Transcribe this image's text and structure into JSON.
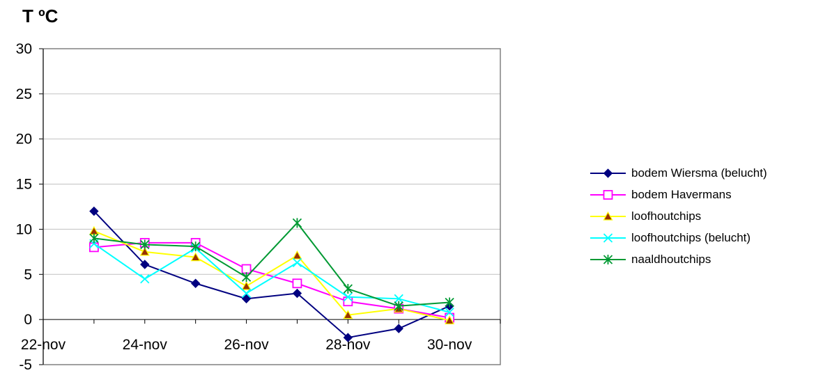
{
  "chart_data": {
    "type": "line",
    "ylabel": "T ºC",
    "xlabel": "",
    "x_ticks": [
      "22-nov",
      "24-nov",
      "26-nov",
      "28-nov",
      "30-nov"
    ],
    "ylim": [
      -5,
      30
    ],
    "xlim": [
      "22-nov",
      "01-dec"
    ],
    "y_ticks": [
      -5,
      0,
      5,
      10,
      15,
      20,
      25,
      30
    ],
    "grid": "horizontal",
    "legend_position": "right",
    "x": [
      "23-nov",
      "24-nov",
      "25-nov",
      "26-nov",
      "27-nov",
      "28-nov",
      "29-nov",
      "30-nov"
    ],
    "series": [
      {
        "name": "bodem Wiersma (belucht)",
        "color": "#000080",
        "marker": "diamond",
        "values": [
          12.0,
          6.1,
          4.0,
          2.3,
          2.9,
          -2.0,
          -1.0,
          1.5
        ]
      },
      {
        "name": "bodem Havermans",
        "color": "#FF00FF",
        "marker": "square",
        "values": [
          8.0,
          8.5,
          8.5,
          5.6,
          4.0,
          2.0,
          1.2,
          0.2
        ]
      },
      {
        "name": "loofhoutchips",
        "color": "#FFFF00",
        "marker": "triangle",
        "values": [
          9.8,
          7.5,
          6.9,
          3.7,
          7.1,
          0.5,
          1.2,
          -0.1
        ]
      },
      {
        "name": "loofhoutchips (belucht)",
        "color": "#00FFFF",
        "marker": "x",
        "values": [
          8.4,
          4.5,
          7.9,
          2.9,
          6.3,
          2.5,
          2.3,
          0.8
        ]
      },
      {
        "name": "naaldhoutchips",
        "color": "#009933",
        "marker": "star",
        "values": [
          9.0,
          8.3,
          8.1,
          4.7,
          10.7,
          3.4,
          1.5,
          1.9
        ]
      }
    ]
  }
}
